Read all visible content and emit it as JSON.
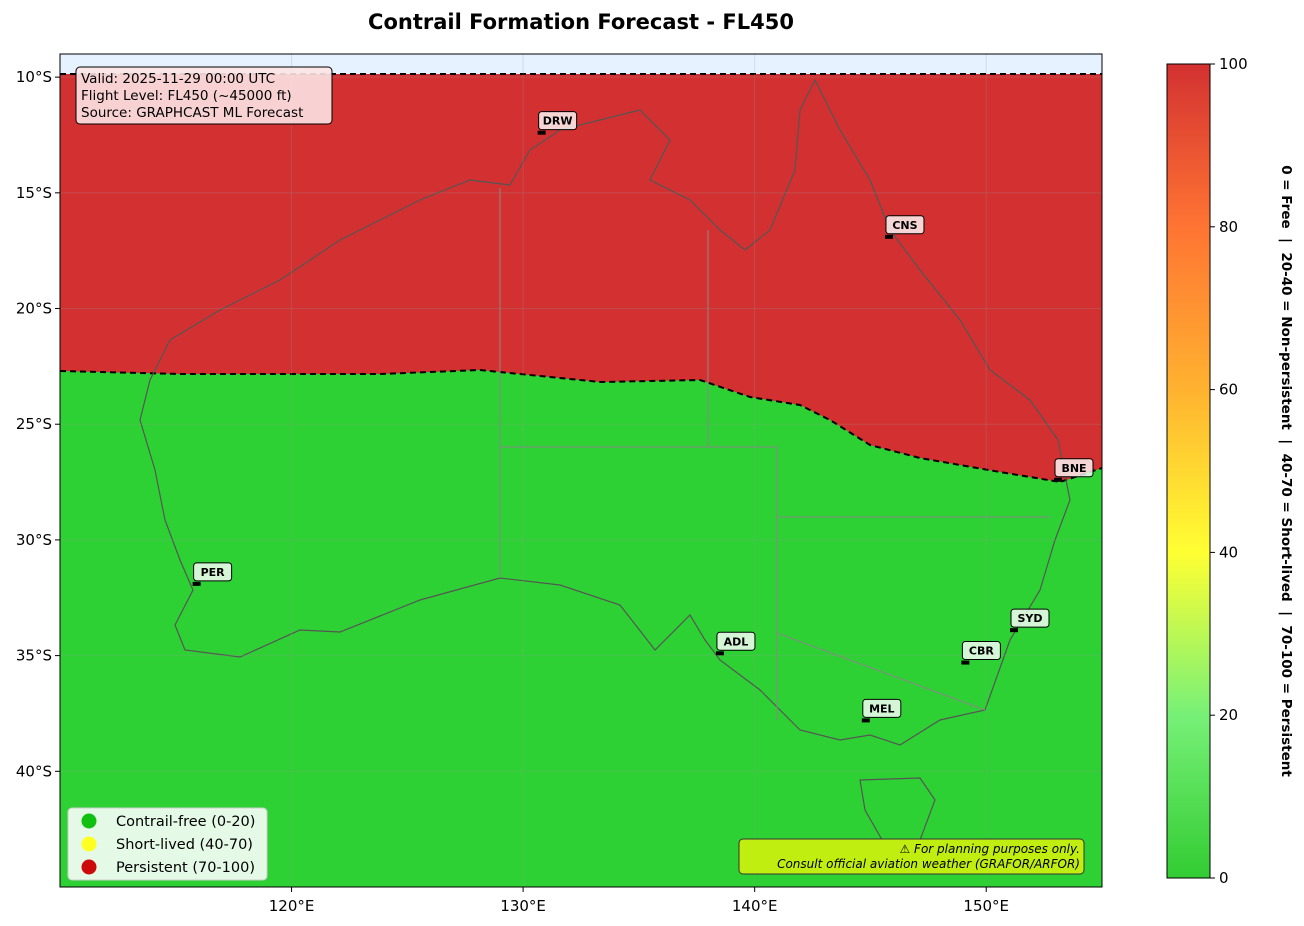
{
  "chart_data": {
    "type": "map",
    "title": "Contrail Formation Forecast - FL450",
    "xlim": [
      110,
      155
    ],
    "ylim": [
      -9,
      -45
    ],
    "xticks": [
      {
        "value": 120,
        "label": "120°E"
      },
      {
        "value": 130,
        "label": "130°E"
      },
      {
        "value": 140,
        "label": "140°E"
      },
      {
        "value": 150,
        "label": "150°E"
      }
    ],
    "yticks": [
      {
        "value": -10,
        "label": "10°S"
      },
      {
        "value": -15,
        "label": "15°S"
      },
      {
        "value": -20,
        "label": "20°S"
      },
      {
        "value": -25,
        "label": "25°S"
      },
      {
        "value": -30,
        "label": "30°S"
      },
      {
        "value": -35,
        "label": "35°S"
      },
      {
        "value": -40,
        "label": "40°S"
      }
    ],
    "info": [
      "Valid: 2025-11-29 00:00 UTC",
      "Flight Level: FL450 (~45000 ft)",
      "Source: GRAPHCAST ML Forecast"
    ],
    "persistent_color": "#d33131",
    "free_color": "#2ed134",
    "airports": [
      {
        "name": "DRW",
        "lon": 130.8,
        "lat": -12.4
      },
      {
        "name": "CNS",
        "lon": 145.8,
        "lat": -16.9
      },
      {
        "name": "BNE",
        "lon": 153.1,
        "lat": -27.4
      },
      {
        "name": "PER",
        "lon": 115.9,
        "lat": -31.9
      },
      {
        "name": "ADL",
        "lon": 138.5,
        "lat": -34.9
      },
      {
        "name": "SYD",
        "lon": 151.2,
        "lat": -33.9
      },
      {
        "name": "CBR",
        "lon": 149.1,
        "lat": -35.3
      },
      {
        "name": "MEL",
        "lon": 144.8,
        "lat": -37.8
      }
    ],
    "legend": [
      {
        "name": "Contrail-free (0-20)",
        "color": "#11c011"
      },
      {
        "name": "Short-lived (40-70)",
        "color": "#ffff22"
      },
      {
        "name": "Persistent (70-100)",
        "color": "#cc0a0a"
      }
    ],
    "note": [
      "⚠ For planning purposes only.",
      "Consult official aviation weather (GRAFOR/ARFOR)"
    ],
    "colorbar": {
      "label": "0 = Free  |  20-40 = Non-persistent  |  40-70 = Short-lived  |  70-100 = Persistent",
      "clim": [
        0,
        100
      ],
      "ticks": [
        0,
        20,
        40,
        60,
        80,
        100
      ],
      "stops": [
        {
          "value": 0,
          "color": "#33cc33"
        },
        {
          "value": 20,
          "color": "#77f077"
        },
        {
          "value": 40,
          "color": "#ffff33"
        },
        {
          "value": 60,
          "color": "#ffb230"
        },
        {
          "value": 80,
          "color": "#ff7433"
        },
        {
          "value": 100,
          "color": "#d33131"
        }
      ]
    }
  }
}
